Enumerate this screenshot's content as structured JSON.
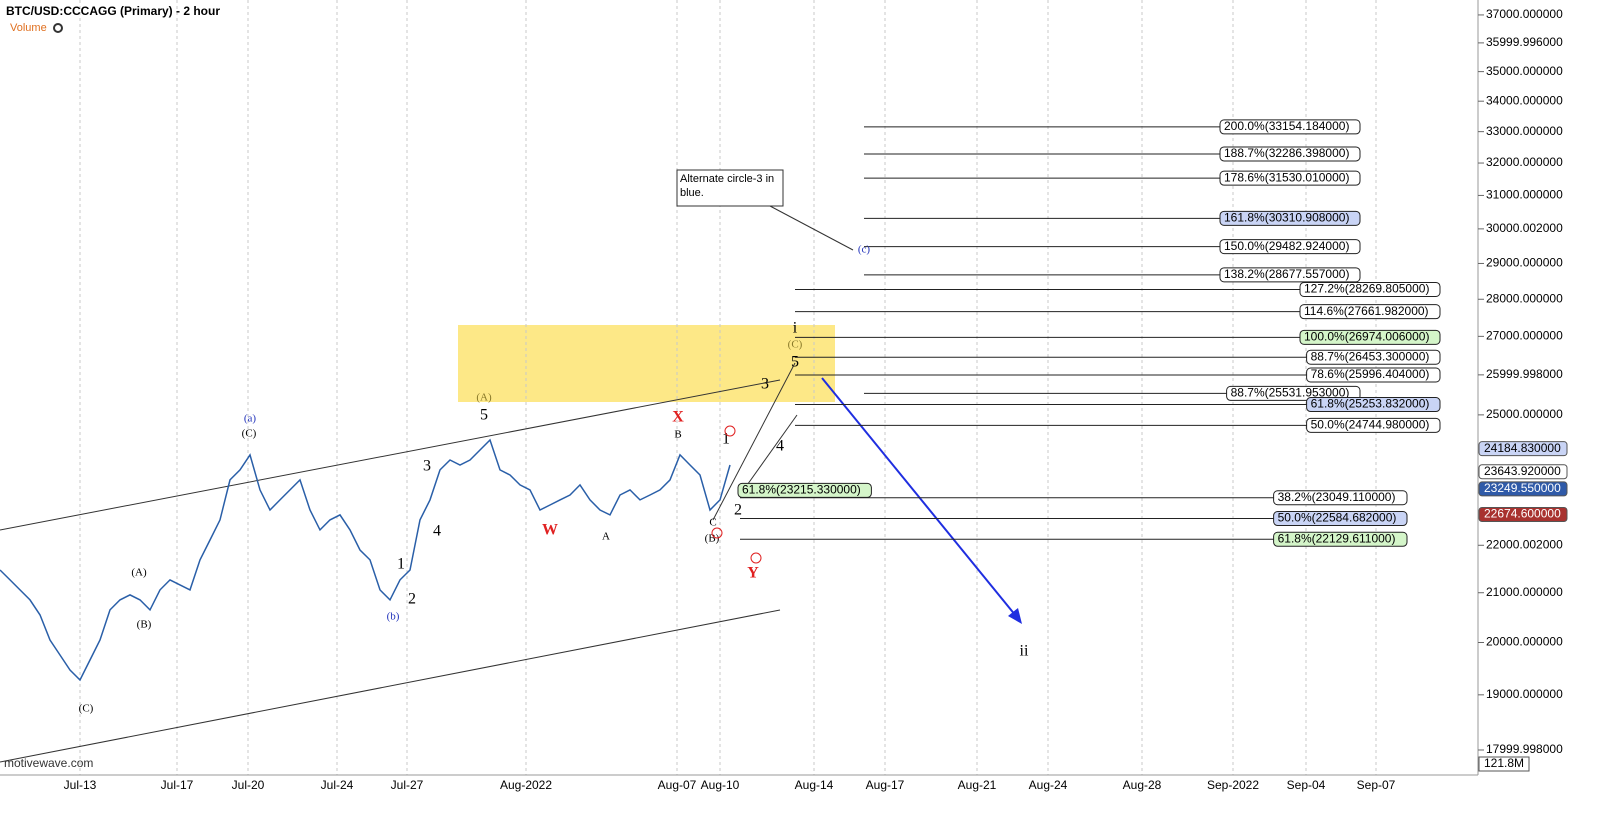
{
  "header": {
    "title": "BTC/USD:CCCAGG (Primary) - 2 hour",
    "volume_label": "Volume",
    "watermark": "motivewave.com"
  },
  "chart_data": {
    "type": "line",
    "log_scale": true,
    "grid": true,
    "ylim": [
      17564,
      37472
    ],
    "yticks": [
      {
        "value": 37000,
        "label": "37000.000000"
      },
      {
        "value": 35999.996,
        "label": "35999.996000"
      },
      {
        "value": 35000,
        "label": "35000.000000"
      },
      {
        "value": 34000,
        "label": "34000.000000"
      },
      {
        "value": 33000,
        "label": "33000.000000"
      },
      {
        "value": 32000,
        "label": "32000.000000"
      },
      {
        "value": 31000,
        "label": "31000.000000"
      },
      {
        "value": 30000.002,
        "label": "30000.002000"
      },
      {
        "value": 29000,
        "label": "29000.000000"
      },
      {
        "value": 28000,
        "label": "28000.000000"
      },
      {
        "value": 27000,
        "label": "27000.000000"
      },
      {
        "value": 25999.998,
        "label": "25999.998000"
      },
      {
        "value": 25000,
        "label": "25000.000000"
      },
      {
        "value": 22000.002,
        "label": "22000.002000"
      },
      {
        "value": 21000,
        "label": "21000.000000"
      },
      {
        "value": 20000,
        "label": "20000.000000"
      },
      {
        "value": 19000,
        "label": "19000.000000"
      },
      {
        "value": 17999.998,
        "label": "17999.998000"
      }
    ],
    "xticks": [
      "Jul-13",
      "Jul-17",
      "Jul-20",
      "Jul-24",
      "Jul-27",
      "Aug-2022",
      "Aug-07",
      "Aug-10",
      "Aug-14",
      "Aug-17",
      "Aug-21",
      "Aug-24",
      "Aug-28",
      "Sep-2022",
      "Sep-04",
      "Sep-07"
    ],
    "series": [
      {
        "name": "BTC/USD",
        "color": "#2a5fa8",
        "values": [
          21474,
          21265,
          21058,
          20853,
          20548,
          20050,
          19757,
          19469,
          19278,
          19660,
          20050,
          20650,
          20853,
          20956,
          20853,
          20650,
          21058,
          21265,
          21161,
          21058,
          21686,
          22115,
          22553,
          23455,
          23686,
          24037,
          23227,
          22775,
          23000,
          23227,
          23455,
          22775,
          22333,
          22553,
          22664,
          22333,
          21899,
          21686,
          21058,
          20853,
          21265,
          21474,
          22553,
          23000,
          23686,
          23919,
          23802,
          23919,
          24154,
          24392,
          23686,
          23570,
          23341,
          23227,
          22775,
          22887,
          23000,
          23112,
          23341,
          23000,
          22775,
          22664,
          23112,
          23227,
          23000,
          23112,
          23227,
          23455,
          24037,
          23802,
          23570,
          22775,
          23000,
          23802
        ]
      }
    ],
    "price_tags": [
      {
        "value": 24184.83,
        "label": "24184.830000",
        "fill": "#c9d4f5",
        "text_color": "#000"
      },
      {
        "value": 23643.92,
        "label": "23643.920000",
        "fill": "#ffffff",
        "text_color": "#000"
      },
      {
        "value": 23249.55,
        "label": "23249.550000",
        "fill": "#2f5aa8",
        "text_color": "#fff"
      },
      {
        "value": 22674.6,
        "label": "22674.600000",
        "fill": "#a8322f",
        "text_color": "#fff"
      }
    ],
    "volume_tag": "121.8M",
    "fib_sets": [
      {
        "levels": [
          {
            "value": 33154.184,
            "label": "200.0%(33154.184000)",
            "fill": "#ffffff"
          },
          {
            "value": 32286.398,
            "label": "188.7%(32286.398000)",
            "fill": "#ffffff"
          },
          {
            "value": 31530.01,
            "label": "178.6%(31530.010000)",
            "fill": "#ffffff"
          },
          {
            "value": 30310.908,
            "label": "161.8%(30310.908000)",
            "fill": "#c9d4f5"
          },
          {
            "value": 29482.924,
            "label": "150.0%(29482.924000)",
            "fill": "#ffffff"
          },
          {
            "value": 28677.557,
            "label": "138.2%(28677.557000)",
            "fill": "#ffffff"
          },
          {
            "value": 25531.953,
            "label": "88.7%(25531.953000)",
            "fill": "#ffffff"
          }
        ]
      },
      {
        "levels": [
          {
            "value": 28269.805,
            "label": "127.2%(28269.805000)",
            "fill": "#ffffff"
          },
          {
            "value": 27661.982,
            "label": "114.6%(27661.982000)",
            "fill": "#ffffff"
          },
          {
            "value": 26974.006,
            "label": "100.0%(26974.006000)",
            "fill": "#d4f5c9"
          },
          {
            "value": 26453.3,
            "label": "88.7%(26453.300000)",
            "fill": "#ffffff"
          },
          {
            "value": 25996.404,
            "label": "78.6%(25996.404000)",
            "fill": "#ffffff"
          },
          {
            "value": 25253.832,
            "label": "61.8%(25253.832000)",
            "fill": "#c9d4f5"
          },
          {
            "value": 24744.98,
            "label": "50.0%(24744.980000)",
            "fill": "#ffffff"
          }
        ]
      },
      {
        "levels": [
          {
            "value": 23049.11,
            "label": "38.2%(23049.110000)",
            "fill": "#ffffff"
          },
          {
            "value": 22584.682,
            "label": "50.0%(22584.682000)",
            "fill": "#c9d4f5"
          },
          {
            "value": 22129.611,
            "label": "61.8%(22129.611000)",
            "fill": "#d4f5c9"
          }
        ]
      },
      {
        "levels": [
          {
            "value": 23215.33,
            "label": "61.8%(23215.330000)",
            "fill": "#d4f5c9"
          }
        ]
      }
    ],
    "wave_labels": [
      {
        "text": "(C)",
        "color": "#000"
      },
      {
        "text": "(A)",
        "color": "#000"
      },
      {
        "text": "(B)",
        "color": "#000"
      },
      {
        "text": "(a)",
        "color": "#2233bb"
      },
      {
        "text": "(C)",
        "color": "#000"
      },
      {
        "text": "(b)",
        "color": "#2233bb"
      },
      {
        "text": "1",
        "color": "#000"
      },
      {
        "text": "2",
        "color": "#000"
      },
      {
        "text": "3",
        "color": "#000"
      },
      {
        "text": "4",
        "color": "#000"
      },
      {
        "text": "(A)",
        "color": "#8a7a2a"
      },
      {
        "text": "5",
        "color": "#000"
      },
      {
        "text": "X",
        "color": "#e02020"
      },
      {
        "text": "B",
        "color": "#000"
      },
      {
        "text": "W",
        "color": "#e02020"
      },
      {
        "text": "A",
        "color": "#000"
      },
      {
        "text": "C",
        "color": "#000"
      },
      {
        "text": "(B)",
        "color": "#000"
      },
      {
        "text": "1",
        "color": "#000"
      },
      {
        "text": "2",
        "color": "#000"
      },
      {
        "text": "3",
        "color": "#000"
      },
      {
        "text": "4",
        "color": "#000"
      },
      {
        "text": "5",
        "color": "#000"
      },
      {
        "text": "(C)",
        "color": "#8a7a2a"
      },
      {
        "text": "i",
        "color": "#000"
      },
      {
        "text": "Y",
        "color": "#e02020"
      },
      {
        "text": "(c)",
        "color": "#2233bb"
      },
      {
        "text": "ii",
        "color": "#000"
      }
    ],
    "note": "Alternate circle-3 in blue."
  }
}
